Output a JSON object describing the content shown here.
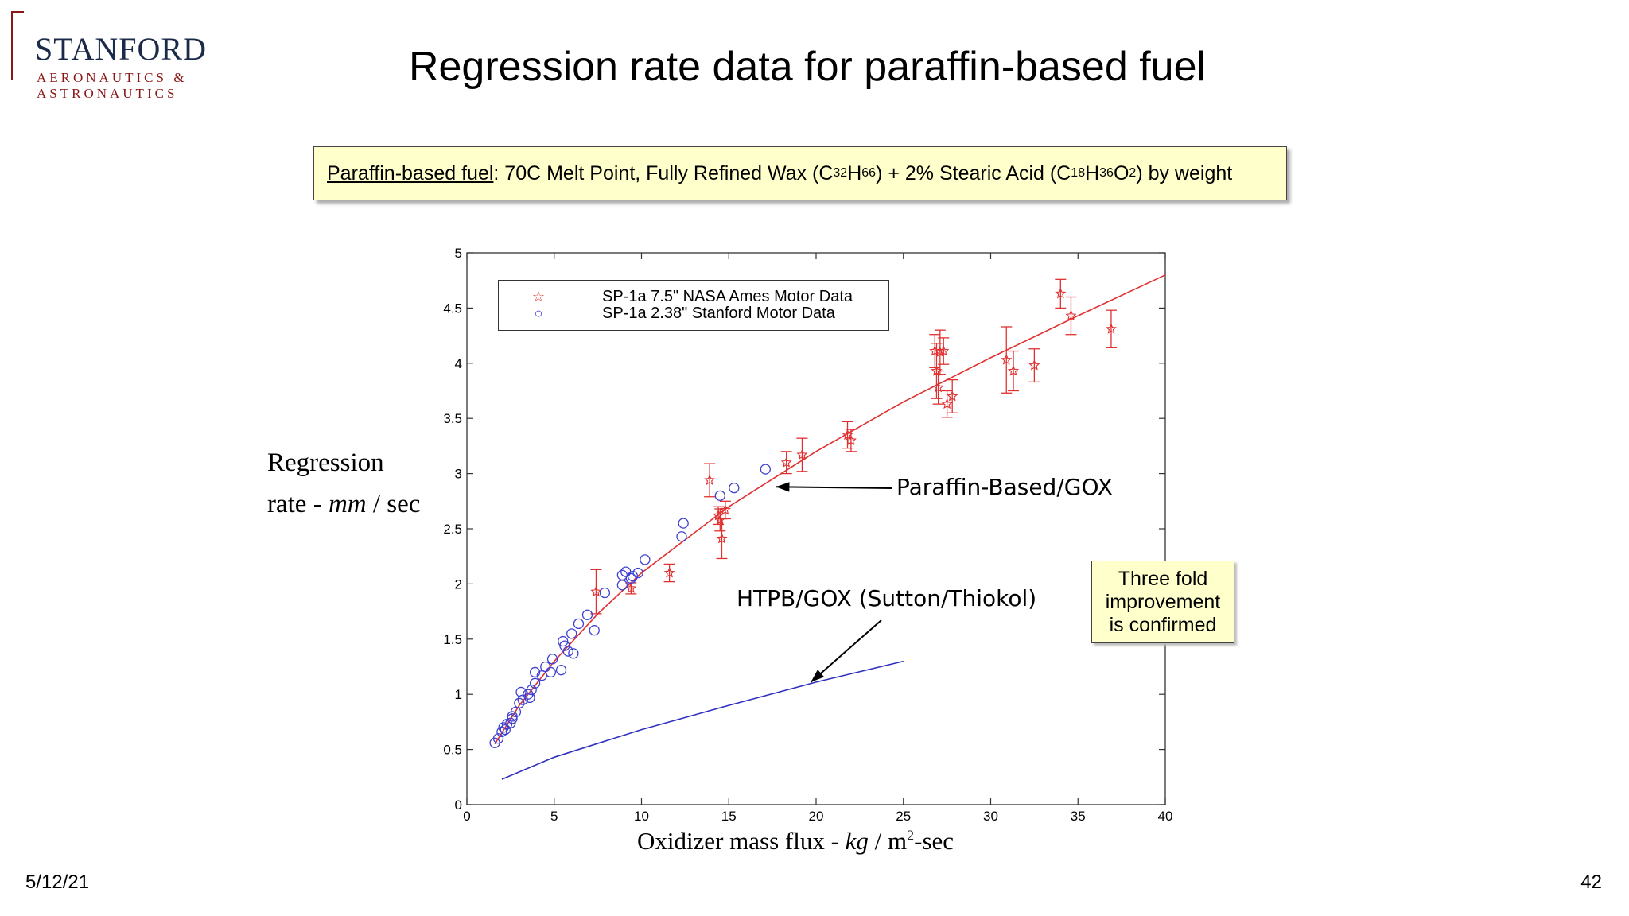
{
  "logo": {
    "name": "STANFORD",
    "line1": "AERONAUTICS &",
    "line2": "ASTRONAUTICS",
    "color": "#8c1515"
  },
  "title": "Regression rate data for paraffin-based fuel",
  "fuel_box": {
    "label": "Paraffin-based fuel",
    "text_a": ": 70C Melt Point, Fully Refined Wax (C",
    "sub_a": "32",
    "text_b": "H",
    "sub_b": "66",
    "text_c": ") + 2% Stearic Acid (C",
    "sub_c": "18",
    "text_d": "H",
    "sub_d": "36",
    "text_e": "O",
    "sub_e": "2",
    "text_f": ") by weight"
  },
  "y_label": {
    "line1": "Regression",
    "line2_a": "rate - ",
    "line2_unit": "mm",
    "line2_b": " / sec"
  },
  "x_label": {
    "a": "Oxidizer mass flux - ",
    "unit": "kg",
    "b": " / m",
    "sup": "2",
    "c": "-sec"
  },
  "annotations": {
    "paraffin": "Paraffin-Based/GOX",
    "htpb": "HTPB/GOX (Sutton/Thiokol)",
    "callout_1": "Three fold",
    "callout_2": "improvement",
    "callout_3": "is confirmed"
  },
  "footer": {
    "date": "5/12/21",
    "page": "42"
  },
  "chart_data": {
    "type": "scatter",
    "xlim": [
      0,
      40
    ],
    "ylim": [
      0,
      5
    ],
    "xticks": [
      "0",
      "5",
      "10",
      "15",
      "20",
      "25",
      "30",
      "35",
      "40"
    ],
    "yticks": [
      "0",
      "0.5",
      "1",
      "1.5",
      "2",
      "2.5",
      "3",
      "3.5",
      "4",
      "4.5",
      "5"
    ],
    "legend_position": "top-left",
    "series": [
      {
        "name": "SP-1a 7.5\" NASA Ames Motor Data",
        "marker": "star",
        "color": "#e03030",
        "points": [
          {
            "x": 7.4,
            "y": 1.93,
            "err": 0.2
          },
          {
            "x": 9.4,
            "y": 1.96,
            "err": 0.05
          },
          {
            "x": 11.6,
            "y": 2.1,
            "err": 0.08
          },
          {
            "x": 13.9,
            "y": 2.94,
            "err": 0.15
          },
          {
            "x": 14.4,
            "y": 2.62,
            "err": 0.08
          },
          {
            "x": 14.5,
            "y": 2.58,
            "err": 0.1
          },
          {
            "x": 14.6,
            "y": 2.41,
            "err": 0.18
          },
          {
            "x": 14.8,
            "y": 2.67,
            "err": 0.08
          },
          {
            "x": 18.3,
            "y": 3.1,
            "err": 0.1
          },
          {
            "x": 19.2,
            "y": 3.17,
            "err": 0.15
          },
          {
            "x": 21.8,
            "y": 3.35,
            "err": 0.12
          },
          {
            "x": 22.0,
            "y": 3.3,
            "err": 0.1
          },
          {
            "x": 26.8,
            "y": 4.11,
            "err": 0.15
          },
          {
            "x": 26.9,
            "y": 3.93,
            "err": 0.25
          },
          {
            "x": 27.0,
            "y": 3.78,
            "err": 0.15
          },
          {
            "x": 27.1,
            "y": 4.1,
            "err": 0.2
          },
          {
            "x": 27.3,
            "y": 4.11,
            "err": 0.12
          },
          {
            "x": 27.5,
            "y": 3.63,
            "err": 0.12
          },
          {
            "x": 27.8,
            "y": 3.7,
            "err": 0.15
          },
          {
            "x": 30.9,
            "y": 4.03,
            "err": 0.3
          },
          {
            "x": 31.3,
            "y": 3.93,
            "err": 0.18
          },
          {
            "x": 32.5,
            "y": 3.98,
            "err": 0.15
          },
          {
            "x": 34.0,
            "y": 4.63,
            "err": 0.13
          },
          {
            "x": 34.6,
            "y": 4.43,
            "err": 0.17
          },
          {
            "x": 36.9,
            "y": 4.31,
            "err": 0.17
          }
        ]
      },
      {
        "name": "SP-1a 2.38\" Stanford Motor Data",
        "marker": "circle",
        "color": "#4040d0",
        "points": [
          {
            "x": 1.6,
            "y": 0.56
          },
          {
            "x": 1.8,
            "y": 0.6
          },
          {
            "x": 2.0,
            "y": 0.66
          },
          {
            "x": 2.1,
            "y": 0.7
          },
          {
            "x": 2.2,
            "y": 0.68
          },
          {
            "x": 2.3,
            "y": 0.73
          },
          {
            "x": 2.5,
            "y": 0.74
          },
          {
            "x": 2.6,
            "y": 0.78
          },
          {
            "x": 2.6,
            "y": 0.8
          },
          {
            "x": 2.8,
            "y": 0.84
          },
          {
            "x": 3.0,
            "y": 0.92
          },
          {
            "x": 3.2,
            "y": 0.95
          },
          {
            "x": 3.1,
            "y": 1.02
          },
          {
            "x": 3.5,
            "y": 1.0
          },
          {
            "x": 3.6,
            "y": 0.97
          },
          {
            "x": 3.7,
            "y": 1.04
          },
          {
            "x": 3.9,
            "y": 1.1
          },
          {
            "x": 3.9,
            "y": 1.2
          },
          {
            "x": 4.3,
            "y": 1.17
          },
          {
            "x": 4.5,
            "y": 1.25
          },
          {
            "x": 4.8,
            "y": 1.2
          },
          {
            "x": 4.9,
            "y": 1.32
          },
          {
            "x": 5.4,
            "y": 1.22
          },
          {
            "x": 5.5,
            "y": 1.48
          },
          {
            "x": 5.6,
            "y": 1.44
          },
          {
            "x": 5.8,
            "y": 1.39
          },
          {
            "x": 6.0,
            "y": 1.55
          },
          {
            "x": 6.1,
            "y": 1.37
          },
          {
            "x": 6.4,
            "y": 1.64
          },
          {
            "x": 6.9,
            "y": 1.72
          },
          {
            "x": 7.3,
            "y": 1.58
          },
          {
            "x": 7.9,
            "y": 1.92
          },
          {
            "x": 8.9,
            "y": 2.08
          },
          {
            "x": 8.9,
            "y": 1.99
          },
          {
            "x": 9.1,
            "y": 2.11
          },
          {
            "x": 9.4,
            "y": 2.05
          },
          {
            "x": 9.5,
            "y": 2.07
          },
          {
            "x": 9.8,
            "y": 2.1
          },
          {
            "x": 10.2,
            "y": 2.22
          },
          {
            "x": 12.3,
            "y": 2.43
          },
          {
            "x": 12.4,
            "y": 2.55
          },
          {
            "x": 14.5,
            "y": 2.8
          },
          {
            "x": 15.3,
            "y": 2.87
          },
          {
            "x": 17.1,
            "y": 3.04
          }
        ]
      }
    ],
    "curves": [
      {
        "label": "Paraffin-Based/GOX",
        "color": "#e03030",
        "x": [
          1.6,
          3,
          5,
          7.5,
          10,
          15,
          20,
          25,
          30,
          35,
          40
        ],
        "y": [
          0.55,
          0.9,
          1.3,
          1.73,
          2.1,
          2.7,
          3.2,
          3.65,
          4.05,
          4.43,
          4.8
        ]
      },
      {
        "label": "HTPB/GOX (Sutton/Thiokol)",
        "color": "#3030c0",
        "x": [
          2,
          5,
          10,
          15,
          20,
          25
        ],
        "y": [
          0.23,
          0.43,
          0.68,
          0.9,
          1.11,
          1.3
        ]
      }
    ]
  }
}
